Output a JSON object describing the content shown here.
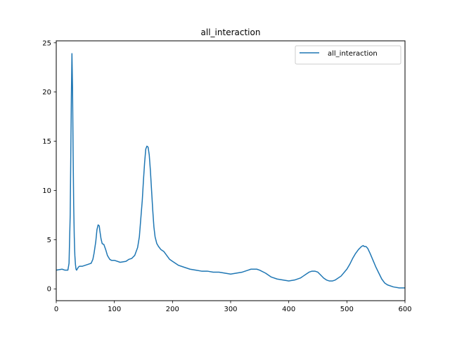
{
  "chart_data": {
    "type": "line",
    "title": "all_interaction",
    "xlabel": "",
    "ylabel": "",
    "xlim": [
      0,
      600
    ],
    "ylim": [
      -1.2,
      25.2
    ],
    "xticks": [
      0,
      100,
      200,
      300,
      400,
      500,
      600
    ],
    "yticks": [
      0,
      5,
      10,
      15,
      20,
      25
    ],
    "grid": false,
    "legend": "top-right",
    "series": [
      {
        "name": "all_interaction",
        "color": "#1f77b4",
        "x": [
          0,
          10,
          15,
          20,
          22,
          24,
          25,
          26,
          27,
          28,
          29,
          30,
          31,
          32,
          33,
          34,
          35,
          36,
          38,
          40,
          45,
          50,
          55,
          60,
          63,
          65,
          68,
          70,
          72,
          74,
          75,
          77,
          79,
          82,
          85,
          88,
          92,
          95,
          100,
          110,
          120,
          125,
          130,
          135,
          140,
          143,
          145,
          148,
          150,
          152,
          154,
          156,
          158,
          160,
          162,
          164,
          166,
          168,
          170,
          173,
          176,
          180,
          185,
          190,
          195,
          200,
          210,
          220,
          230,
          240,
          250,
          260,
          270,
          280,
          290,
          300,
          310,
          320,
          325,
          330,
          335,
          340,
          345,
          350,
          360,
          370,
          380,
          390,
          400,
          410,
          420,
          425,
          430,
          435,
          440,
          445,
          450,
          455,
          460,
          465,
          470,
          475,
          480,
          490,
          500,
          505,
          510,
          515,
          520,
          525,
          528,
          530,
          533,
          536,
          540,
          545,
          550,
          555,
          560,
          565,
          570,
          580,
          590,
          600
        ],
        "values": [
          1.9,
          2.0,
          1.9,
          1.9,
          2.6,
          7.5,
          13.5,
          19.5,
          23.9,
          20.5,
          14.0,
          8.5,
          5.3,
          3.4,
          2.5,
          2.0,
          1.9,
          2.0,
          2.2,
          2.3,
          2.3,
          2.4,
          2.5,
          2.6,
          3.0,
          3.6,
          4.8,
          6.0,
          6.5,
          6.4,
          5.9,
          5.1,
          4.6,
          4.5,
          4.0,
          3.4,
          3.0,
          2.9,
          2.9,
          2.7,
          2.8,
          3.0,
          3.1,
          3.4,
          4.2,
          5.3,
          6.8,
          9.0,
          11.0,
          12.8,
          14.2,
          14.5,
          14.4,
          13.6,
          12.0,
          10.0,
          8.0,
          6.3,
          5.3,
          4.6,
          4.3,
          4.0,
          3.8,
          3.4,
          3.0,
          2.8,
          2.4,
          2.2,
          2.0,
          1.9,
          1.8,
          1.8,
          1.7,
          1.7,
          1.6,
          1.5,
          1.6,
          1.7,
          1.8,
          1.9,
          2.0,
          2.0,
          2.0,
          1.9,
          1.6,
          1.2,
          1.0,
          0.9,
          0.8,
          0.9,
          1.1,
          1.3,
          1.5,
          1.7,
          1.8,
          1.8,
          1.7,
          1.4,
          1.1,
          0.9,
          0.8,
          0.8,
          0.9,
          1.3,
          2.0,
          2.5,
          3.1,
          3.6,
          4.0,
          4.3,
          4.4,
          4.3,
          4.3,
          4.1,
          3.6,
          2.9,
          2.2,
          1.6,
          1.0,
          0.6,
          0.4,
          0.2,
          0.1,
          0.1
        ]
      }
    ]
  }
}
